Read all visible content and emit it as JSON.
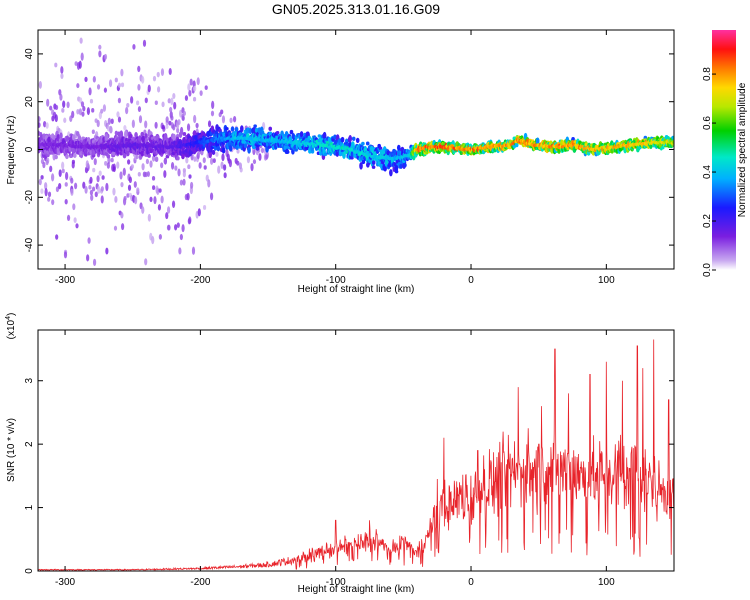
{
  "title": "GN05.2025.313.01.16.G09",
  "chart_data": [
    {
      "type": "heatmap",
      "name": "spectrogram",
      "xlabel": "Height of straight line (km)",
      "ylabel": "Frequency (Hz)",
      "xlim": [
        -320,
        150
      ],
      "ylim": [
        -50,
        50
      ],
      "x_ticks": [
        "-300",
        "-200",
        "-100",
        "0",
        "100"
      ],
      "x_tick_values": [
        -300,
        -200,
        -100,
        0,
        100
      ],
      "y_ticks": [
        "40",
        "20",
        "0",
        "-20",
        "-40"
      ],
      "y_tick_values": [
        40,
        20,
        0,
        -20,
        -40
      ],
      "colorbar": {
        "label": "Normalized spectral amplitude",
        "range": [
          0,
          0.98
        ],
        "ticks": [
          "0.0",
          "0.2",
          "0.4",
          "0.6",
          "0.8"
        ],
        "tick_values": [
          0.0,
          0.2,
          0.4,
          0.6,
          0.8
        ],
        "colormap": "rainbow (white/violet → blue → cyan → green → yellow → orange → red → magenta)"
      },
      "ridge": {
        "description": "Dominant frequency track with amplitude by height",
        "x": [
          -310,
          -280,
          -250,
          -220,
          -190,
          -170,
          -150,
          -130,
          -110,
          -90,
          -70,
          -55,
          -45,
          -40,
          -30,
          -15,
          0,
          15,
          30,
          35,
          45,
          60,
          75,
          90,
          105,
          120,
          135,
          150
        ],
        "freq": [
          2,
          1,
          2,
          1,
          4,
          5,
          4,
          3,
          2,
          0,
          -3,
          -4,
          -2,
          0,
          1,
          1,
          0,
          1,
          2,
          4,
          2,
          1,
          2,
          0,
          1,
          2,
          3,
          3
        ],
        "amplitude": [
          0.15,
          0.15,
          0.18,
          0.18,
          0.35,
          0.45,
          0.42,
          0.45,
          0.48,
          0.5,
          0.45,
          0.42,
          0.45,
          0.9,
          0.92,
          0.9,
          0.9,
          0.88,
          0.85,
          0.9,
          0.85,
          0.88,
          0.86,
          0.85,
          0.82,
          0.84,
          0.8,
          0.75
        ]
      },
      "spread_hz": {
        "x": [
          -320,
          -200,
          -180,
          -150,
          -100,
          -60,
          -40,
          0,
          150
        ],
        "value": [
          45,
          40,
          15,
          10,
          9,
          12,
          5,
          4,
          5
        ]
      }
    },
    {
      "type": "line",
      "name": "snr",
      "xlabel": "Height of straight line (km)",
      "ylabel": "SNR (10 * v/v)",
      "y_multiplier": "(x10",
      "y_multiplier_exp": "4",
      "y_multiplier_close": ")",
      "xlim": [
        -320,
        150
      ],
      "ylim": [
        0,
        3.8
      ],
      "x_ticks": [
        "-300",
        "-200",
        "-100",
        "0",
        "100"
      ],
      "x_tick_values": [
        -300,
        -200,
        -100,
        0,
        100
      ],
      "y_ticks": [
        "0",
        "1",
        "2",
        "3"
      ],
      "y_tick_values": [
        0,
        1,
        2,
        3
      ],
      "color": "#e8232a",
      "series": [
        {
          "x": [
            -320,
            -250,
            -200,
            -170,
            -150,
            -130,
            -110,
            -100,
            -90,
            -80,
            -70,
            -60,
            -50,
            -40,
            -30,
            -25,
            -20,
            -15,
            -10,
            0,
            10,
            20,
            30,
            40,
            50,
            60,
            70,
            80,
            90,
            100,
            110,
            120,
            130,
            140,
            150
          ],
          "values": [
            0.02,
            0.02,
            0.04,
            0.07,
            0.1,
            0.18,
            0.3,
            0.35,
            0.4,
            0.45,
            0.5,
            0.3,
            0.45,
            0.3,
            0.6,
            0.9,
            1.1,
            1.0,
            1.15,
            1.2,
            1.35,
            1.45,
            1.55,
            1.6,
            1.6,
            1.55,
            1.6,
            1.5,
            1.5,
            1.55,
            1.6,
            1.5,
            1.4,
            1.3,
            1.2
          ],
          "peaks": [
            {
              "x": -100,
              "y": 0.8
            },
            {
              "x": -75,
              "y": 0.8
            },
            {
              "x": -25,
              "y": 1.45
            },
            {
              "x": -20,
              "y": 2.1
            },
            {
              "x": 5,
              "y": 1.9
            },
            {
              "x": 35,
              "y": 2.9
            },
            {
              "x": 52,
              "y": 2.6
            },
            {
              "x": 62,
              "y": 3.5
            },
            {
              "x": 72,
              "y": 2.8
            },
            {
              "x": 88,
              "y": 3.1
            },
            {
              "x": 100,
              "y": 3.3
            },
            {
              "x": 112,
              "y": 3.0
            },
            {
              "x": 123,
              "y": 3.55
            },
            {
              "x": 127,
              "y": 3.2
            },
            {
              "x": 135,
              "y": 3.65
            },
            {
              "x": 146,
              "y": 2.7
            }
          ]
        }
      ]
    }
  ]
}
